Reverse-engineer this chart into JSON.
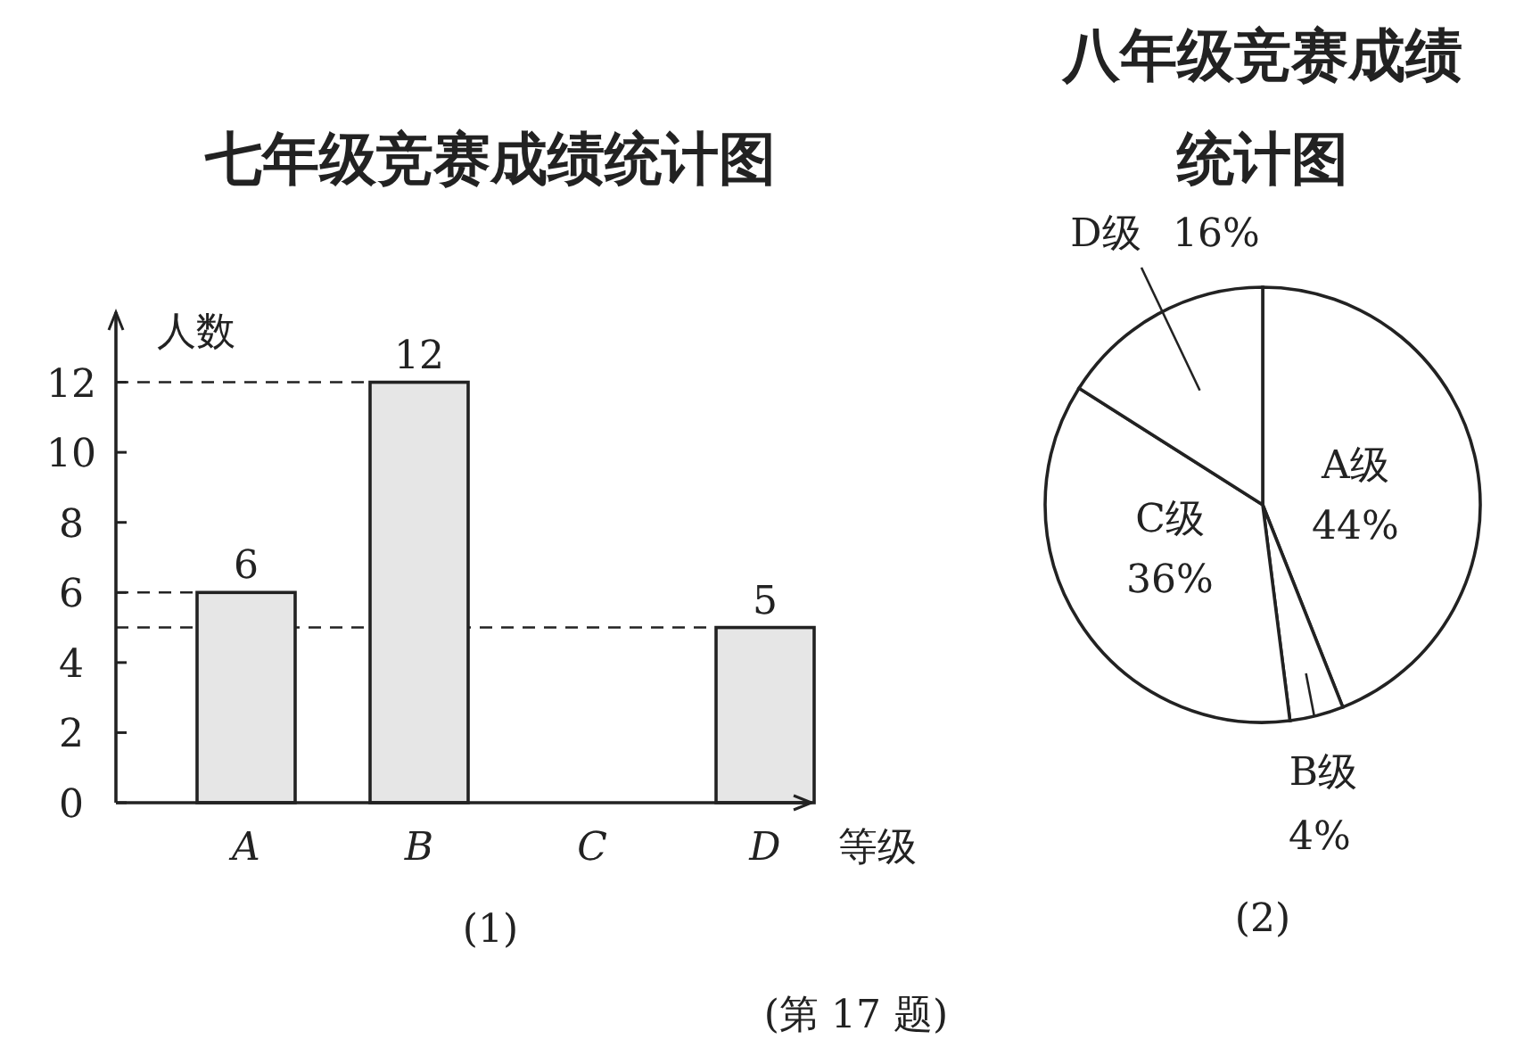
{
  "chart_data": [
    {
      "type": "bar",
      "title": "七年级竞赛成绩统计图",
      "xlabel": "等级",
      "ylabel": "人数",
      "categories": [
        "A",
        "B",
        "C",
        "D"
      ],
      "values": [
        6,
        12,
        null,
        5
      ],
      "color": "#e6e6e6",
      "ylim": [
        0,
        14
      ],
      "yticks": [
        0,
        2,
        4,
        6,
        8,
        10,
        12
      ],
      "data_labels": true,
      "ref_lines": [
        {
          "axis": "y",
          "value": 12,
          "line_style": "dashed"
        },
        {
          "axis": "y",
          "value": 6,
          "line_style": "dashed"
        },
        {
          "axis": "y",
          "value": 5,
          "line_style": "dashed"
        }
      ],
      "annotations": [
        "(1)",
        "(第 17 题)"
      ]
    },
    {
      "type": "pie",
      "title": "八年级竞赛成绩统计图",
      "categories": [
        "A级",
        "B级",
        "C级",
        "D级"
      ],
      "values": [
        44,
        4,
        36,
        16
      ],
      "value_labels": [
        "44%",
        "4%",
        "36%",
        "16%"
      ],
      "colors": [
        "#ffffff",
        "#ffffff",
        "#ffffff",
        "#ffffff"
      ],
      "annotations": [
        "(2)"
      ]
    }
  ]
}
